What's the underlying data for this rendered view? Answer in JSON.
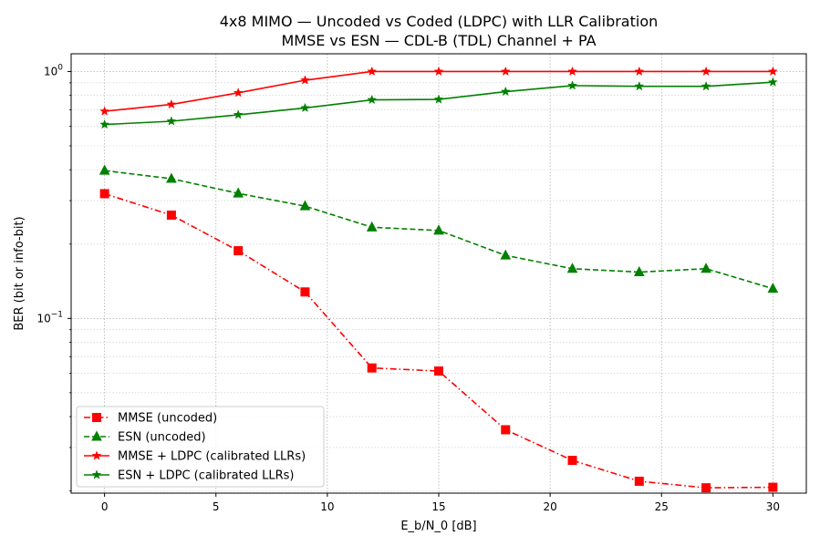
{
  "chart_data": {
    "type": "line",
    "title": "4x8 MIMO — Uncoded vs Coded (LDPC) with LLR Calibration",
    "subtitle": "MMSE vs ESN — CDL-B (TDL) Channel + PA",
    "xlabel": "E_b/N_0 [dB]",
    "ylabel": "BER (bit or info-bit)",
    "xscale": "linear",
    "yscale": "log",
    "xlim": [
      -1.5,
      31.5
    ],
    "ylim": [
      0.0196,
      1.18
    ],
    "xticks": [
      0,
      5,
      10,
      15,
      20,
      25,
      30
    ],
    "xtick_labels": [
      "0",
      "5",
      "10",
      "15",
      "20",
      "25",
      "30"
    ],
    "yticks": [
      0.1,
      1
    ],
    "ytick_labels": [
      {
        "base": "10",
        "exp": "−1"
      },
      {
        "base": "10",
        "exp": "0"
      }
    ],
    "grid": true,
    "legend_position": "lower-left",
    "x": [
      0,
      3,
      6,
      9,
      12,
      15,
      18,
      21,
      24,
      27,
      30
    ],
    "series": [
      {
        "name": "MMSE (uncoded)",
        "color": "#ff0000",
        "linestyle": "dashdot",
        "marker": "square",
        "values": [
          0.32,
          0.262,
          0.188,
          0.128,
          0.063,
          0.0612,
          0.0354,
          0.0266,
          0.0219,
          0.0206,
          0.0207
        ]
      },
      {
        "name": "ESN (uncoded)",
        "color": "#008000",
        "linestyle": "dashed",
        "marker": "triangle",
        "values": [
          0.397,
          0.368,
          0.321,
          0.285,
          0.234,
          0.227,
          0.18,
          0.159,
          0.154,
          0.159,
          0.132
        ]
      },
      {
        "name": "MMSE + LDPC (calibrated LLRs)",
        "color": "#ff0000",
        "linestyle": "solid",
        "marker": "star",
        "values": [
          0.69,
          0.736,
          0.82,
          0.922,
          1.0,
          1.0,
          1.0,
          1.0,
          1.0,
          1.0,
          1.0
        ]
      },
      {
        "name": "ESN + LDPC (calibrated LLRs)",
        "color": "#008000",
        "linestyle": "solid",
        "marker": "star",
        "values": [
          0.61,
          0.629,
          0.668,
          0.712,
          0.768,
          0.771,
          0.829,
          0.877,
          0.871,
          0.871,
          0.905
        ]
      }
    ]
  }
}
